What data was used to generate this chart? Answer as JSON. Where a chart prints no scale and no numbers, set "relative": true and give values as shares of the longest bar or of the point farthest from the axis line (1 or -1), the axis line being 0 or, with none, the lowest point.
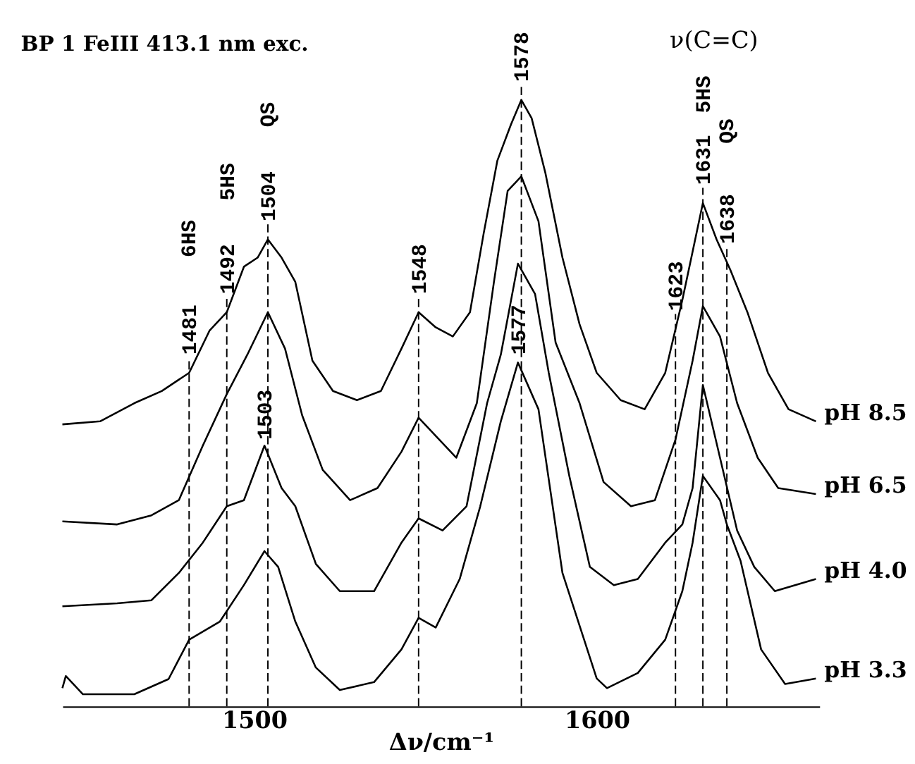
{
  "chart_data": {
    "type": "line",
    "relative": true,
    "title": "BP 1 FeIII  413.1 nm exc.",
    "xlabel": "Δν/cm⁻¹",
    "xlim": [
      1444,
      1665
    ],
    "xticks": [
      1500,
      1600
    ],
    "grid": false,
    "legend": false,
    "marker": "none",
    "line_style": "solid",
    "series": [
      {
        "name": "pH 8.5",
        "color": "#000000",
        "x": [
          1444,
          1455,
          1465,
          1473,
          1481,
          1487,
          1492,
          1497,
          1501,
          1504,
          1508,
          1512,
          1517,
          1523,
          1530,
          1537,
          1543,
          1548,
          1553,
          1558,
          1563,
          1567,
          1571,
          1575,
          1578,
          1581,
          1585,
          1590,
          1595,
          1600,
          1607,
          1614,
          1620,
          1625,
          1628,
          1631,
          1635,
          1639,
          1644,
          1650,
          1656,
          1664
        ],
        "values": [
          0.465,
          0.47,
          0.5,
          0.52,
          0.55,
          0.62,
          0.65,
          0.725,
          0.74,
          0.77,
          0.74,
          0.7,
          0.57,
          0.52,
          0.505,
          0.52,
          0.59,
          0.65,
          0.625,
          0.61,
          0.65,
          0.78,
          0.9,
          0.96,
          1.0,
          0.97,
          0.88,
          0.74,
          0.63,
          0.55,
          0.505,
          0.49,
          0.55,
          0.67,
          0.75,
          0.83,
          0.77,
          0.72,
          0.65,
          0.55,
          0.49,
          0.47
        ]
      },
      {
        "name": "pH 6.5",
        "color": "#000000",
        "x": [
          1444,
          1460,
          1470,
          1478,
          1485,
          1492,
          1498,
          1504,
          1509,
          1514,
          1520,
          1528,
          1536,
          1543,
          1548,
          1554,
          1559,
          1565,
          1570,
          1574,
          1578,
          1583,
          1588,
          1595,
          1602,
          1610,
          1617,
          1623,
          1628,
          1631,
          1636,
          1641,
          1647,
          1653,
          1664
        ],
        "values": [
          0.305,
          0.3,
          0.315,
          0.34,
          0.43,
          0.515,
          0.58,
          0.65,
          0.59,
          0.48,
          0.39,
          0.34,
          0.36,
          0.42,
          0.476,
          0.44,
          0.41,
          0.5,
          0.7,
          0.85,
          0.874,
          0.8,
          0.6,
          0.5,
          0.37,
          0.33,
          0.34,
          0.44,
          0.57,
          0.66,
          0.61,
          0.5,
          0.41,
          0.36,
          0.35
        ]
      },
      {
        "name": "pH 4.0",
        "color": "#000000",
        "x": [
          1444,
          1460,
          1470,
          1478,
          1485,
          1492,
          1497,
          1503,
          1508,
          1512,
          1518,
          1525,
          1535,
          1543,
          1548,
          1555,
          1562,
          1568,
          1572,
          1577,
          1582,
          1586,
          1592,
          1598,
          1605,
          1612,
          1620,
          1625,
          1628,
          1631,
          1636,
          1641,
          1646,
          1652,
          1664
        ],
        "values": [
          0.165,
          0.17,
          0.175,
          0.22,
          0.27,
          0.33,
          0.34,
          0.43,
          0.36,
          0.33,
          0.235,
          0.19,
          0.19,
          0.27,
          0.31,
          0.29,
          0.33,
          0.5,
          0.58,
          0.73,
          0.68,
          0.55,
          0.38,
          0.23,
          0.2,
          0.21,
          0.27,
          0.3,
          0.36,
          0.53,
          0.41,
          0.29,
          0.23,
          0.19,
          0.21
        ]
      },
      {
        "name": "pH 3.3",
        "color": "#000000",
        "x": [
          1444,
          1445,
          1450,
          1465,
          1475,
          1481,
          1490,
          1497,
          1503,
          1507,
          1512,
          1518,
          1525,
          1535,
          1543,
          1548,
          1553,
          1560,
          1566,
          1572,
          1577,
          1583,
          1590,
          1600,
          1603,
          1612,
          1620,
          1625,
          1628,
          1631,
          1636,
          1638,
          1642,
          1648,
          1655,
          1664
        ],
        "values": [
          0.03,
          0.05,
          0.02,
          0.02,
          0.045,
          0.11,
          0.14,
          0.2,
          0.256,
          0.23,
          0.14,
          0.064,
          0.027,
          0.04,
          0.094,
          0.146,
          0.13,
          0.21,
          0.33,
          0.47,
          0.567,
          0.49,
          0.22,
          0.046,
          0.03,
          0.055,
          0.11,
          0.19,
          0.27,
          0.38,
          0.34,
          0.3,
          0.24,
          0.094,
          0.037,
          0.046
        ]
      }
    ],
    "ref_lines": [
      {
        "axis": "x",
        "value": 1481,
        "label": "1481",
        "line_style": "dashed"
      },
      {
        "axis": "x",
        "value": 1492,
        "label": "1492",
        "line_style": "dashed"
      },
      {
        "axis": "x",
        "value": 1504,
        "label": "1504",
        "line_style": "dashed"
      },
      {
        "axis": "x",
        "value": 1548,
        "label": "1548",
        "line_style": "dashed"
      },
      {
        "axis": "x",
        "value": 1578,
        "label": "1578",
        "line_style": "dashed"
      },
      {
        "axis": "x",
        "value": 1623,
        "label": "1623",
        "line_style": "dashed"
      },
      {
        "axis": "x",
        "value": 1631,
        "label": "1631",
        "line_style": "dashed"
      },
      {
        "axis": "x",
        "value": 1638,
        "label": "1638",
        "line_style": "dashed"
      }
    ],
    "annotations": [
      "6HS",
      "5HS",
      "QS",
      {
        "text": "1503",
        "x": 1503,
        "y": 0.44
      },
      {
        "text": "1577",
        "x": 1577,
        "y": 0.58
      },
      "5HS",
      "QS",
      "ν(C=C)"
    ]
  }
}
